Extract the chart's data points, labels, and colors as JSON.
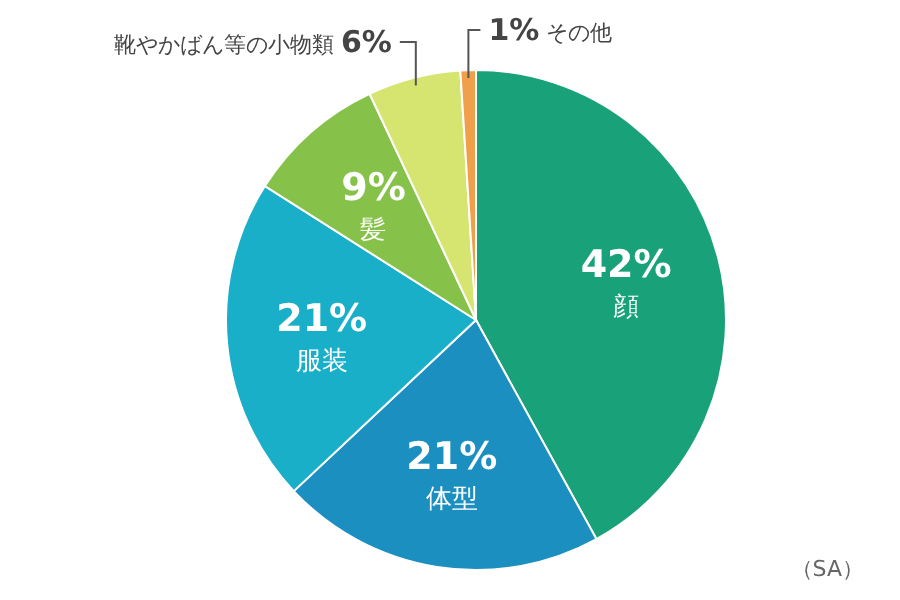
{
  "chart_data": {
    "type": "pie",
    "categories": [
      "顔",
      "体型",
      "服装",
      "髪",
      "靴やかばん等の小物類",
      "その他"
    ],
    "values": [
      42,
      21,
      21,
      9,
      6,
      1
    ],
    "value_labels": [
      "42%",
      "21%",
      "21%",
      "9%",
      "6%",
      "1%"
    ],
    "colors": [
      "#19a27a",
      "#1b8fbf",
      "#1aafc8",
      "#86c24a",
      "#d6e470",
      "#f0a04b"
    ],
    "annotations": [
      "（SA）"
    ]
  }
}
